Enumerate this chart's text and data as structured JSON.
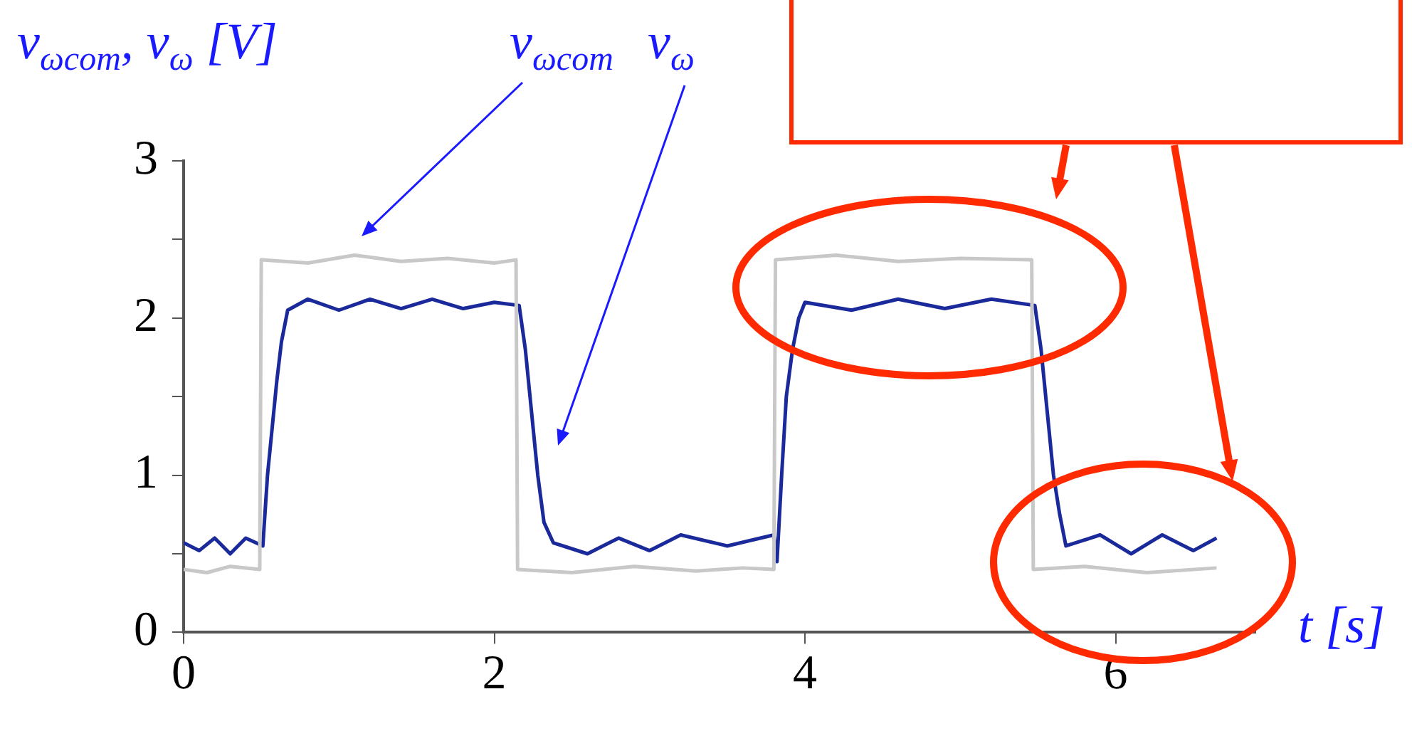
{
  "chart_data": {
    "type": "line",
    "xlabel": "t [s]",
    "ylabel": "v$_{ωcom}$, v$_{ω}$ [V]",
    "xlim": [
      0,
      6.9
    ],
    "xticks": [
      0,
      2,
      4,
      6
    ],
    "ylim": [
      0,
      3
    ],
    "yticks": [
      0,
      {
        "value": 0.5,
        "label": null
      },
      1,
      {
        "value": 1.5,
        "label": null
      },
      2,
      {
        "value": 2.5,
        "label": null
      },
      3
    ],
    "grid": false,
    "legend": false,
    "annotations": [
      "v$_{ωcom}$",
      "v$_{ω}$"
    ],
    "series": [
      {
        "color": "#c8c8c8",
        "x": [
          0,
          0.15,
          0.3,
          0.49,
          0.5,
          0.8,
          1.1,
          1.4,
          1.7,
          2.0,
          2.14,
          2.15,
          2.5,
          2.9,
          3.3,
          3.6,
          3.8,
          3.81,
          4.2,
          4.6,
          5.0,
          5.46,
          5.47,
          5.8,
          6.2,
          6.65
        ],
        "values": [
          0.4,
          0.38,
          0.42,
          0.4,
          2.37,
          2.35,
          2.4,
          2.36,
          2.38,
          2.35,
          2.37,
          0.4,
          0.38,
          0.42,
          0.39,
          0.41,
          0.4,
          2.37,
          2.4,
          2.36,
          2.38,
          2.37,
          0.4,
          0.42,
          0.38,
          0.41
        ]
      },
      {
        "color": "#1a2a9a",
        "x": [
          0,
          0.1,
          0.2,
          0.3,
          0.4,
          0.51,
          0.54,
          0.57,
          0.6,
          0.63,
          0.67,
          0.8,
          1.0,
          1.2,
          1.4,
          1.6,
          1.8,
          2.0,
          2.16,
          2.2,
          2.24,
          2.28,
          2.32,
          2.38,
          2.6,
          2.8,
          3.0,
          3.2,
          3.5,
          3.8,
          3.82,
          3.85,
          3.88,
          3.92,
          3.96,
          4.0,
          4.3,
          4.6,
          4.9,
          5.2,
          5.48,
          5.52,
          5.56,
          5.6,
          5.64,
          5.68,
          5.9,
          6.1,
          6.3,
          6.5,
          6.65
        ],
        "values": [
          0.57,
          0.52,
          0.6,
          0.5,
          0.6,
          0.55,
          1.0,
          1.3,
          1.6,
          1.85,
          2.05,
          2.12,
          2.05,
          2.12,
          2.06,
          2.12,
          2.06,
          2.1,
          2.08,
          1.8,
          1.4,
          1.0,
          0.7,
          0.57,
          0.5,
          0.6,
          0.52,
          0.62,
          0.55,
          0.62,
          0.45,
          1.0,
          1.5,
          1.8,
          2.0,
          2.1,
          2.05,
          2.12,
          2.06,
          2.12,
          2.08,
          1.8,
          1.4,
          1.0,
          0.75,
          0.55,
          0.62,
          0.5,
          0.62,
          0.52,
          0.6
        ]
      }
    ]
  }
}
